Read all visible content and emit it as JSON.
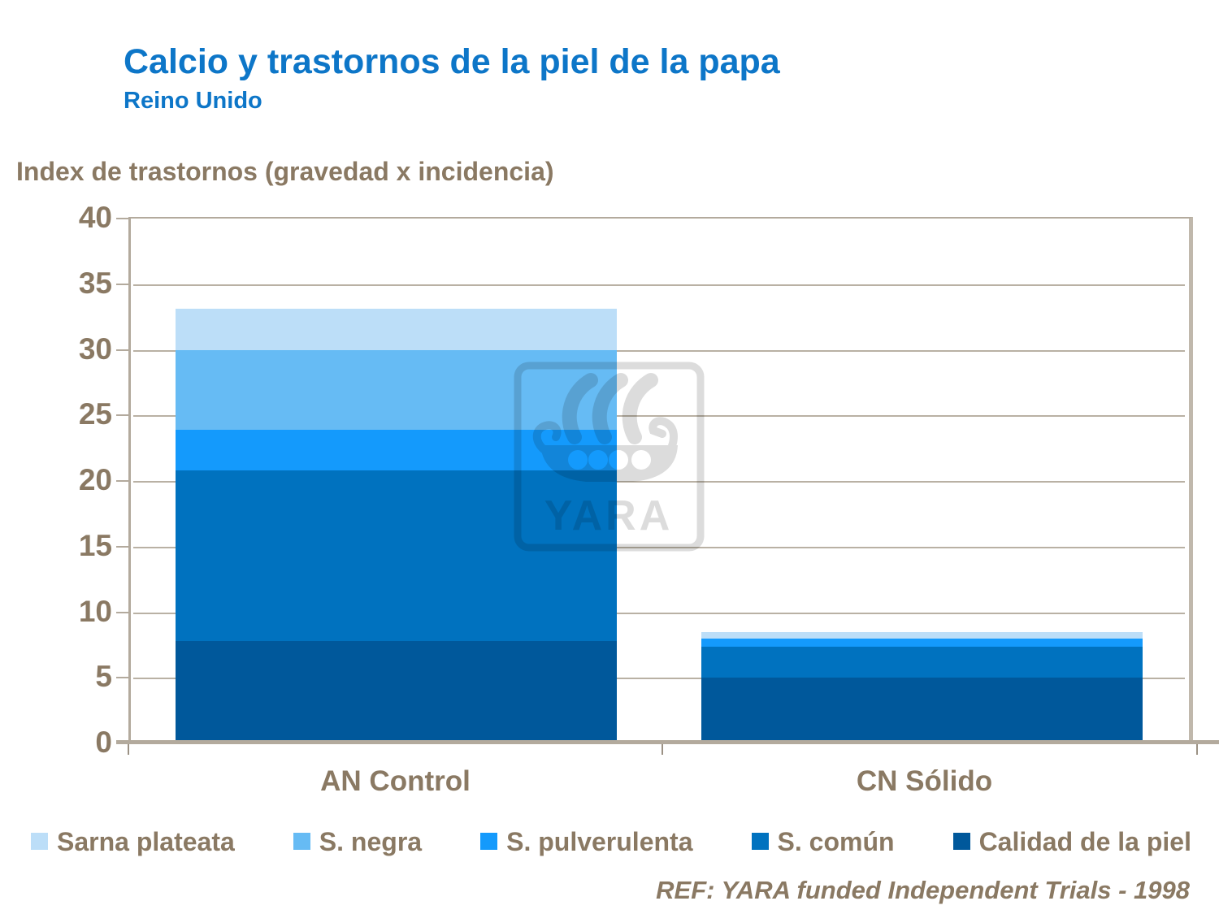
{
  "header": {
    "title": "Calcio y trastornos de la piel de la papa",
    "subtitle": "Reino Unido"
  },
  "axis_label": "Index de trastornos (gravedad x incidencia)",
  "footer": {
    "ref": "REF: YARA funded Independent Trials - 1998"
  },
  "watermark": {
    "text": "YARA"
  },
  "colors": {
    "title_blue": "#0d76c8",
    "text_brown": "#8a7963",
    "frame_tan": "#b3aa9d"
  },
  "chart_data": {
    "type": "bar",
    "stacked": true,
    "title": "Calcio y trastornos de la piel de la papa",
    "subtitle": "Reino Unido",
    "ylabel": "Index de trastornos (gravedad x incidencia)",
    "categories": [
      "AN Control",
      "CN Sólido"
    ],
    "series": [
      {
        "name": "Calidad de la piel",
        "color": "#00589b",
        "values": [
          7.8,
          5.0
        ]
      },
      {
        "name": "S. común",
        "color": "#0072bf",
        "values": [
          13.0,
          2.4
        ]
      },
      {
        "name": "S. pulverulenta",
        "color": "#149afc",
        "values": [
          3.1,
          0.6
        ]
      },
      {
        "name": "S. negra",
        "color": "#66bbf4",
        "values": [
          6.1,
          0.0
        ]
      },
      {
        "name": "Sarna plateata",
        "color": "#bcdef8",
        "values": [
          3.1,
          0.5
        ]
      }
    ],
    "totals": [
      33.1,
      8.5
    ],
    "legend_order": [
      "Sarna plateata",
      "S. negra",
      "S. pulverulenta",
      "S. común",
      "Calidad de la piel"
    ],
    "ylim": [
      0,
      40
    ],
    "yticks": [
      0,
      5,
      10,
      15,
      20,
      25,
      30,
      35,
      40
    ],
    "grid": true,
    "legend_position": "bottom"
  }
}
